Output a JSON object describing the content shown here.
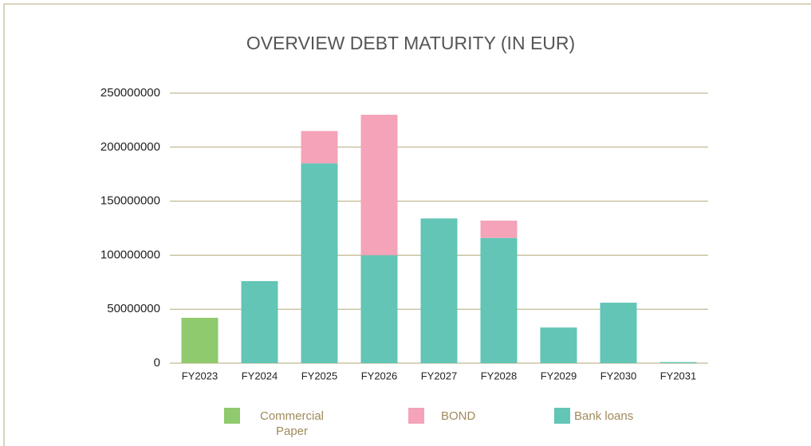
{
  "chart_data": {
    "type": "bar",
    "stacked": true,
    "title": "OVERVIEW DEBT MATURITY (IN EUR)",
    "categories": [
      "FY2023",
      "FY2024",
      "FY2025",
      "FY2026",
      "FY2027",
      "FY2028",
      "FY2029",
      "FY2030",
      "FY2031"
    ],
    "series": [
      {
        "name": "Commercial Paper",
        "color": "#8fca6e",
        "values": [
          42000000,
          0,
          0,
          0,
          0,
          0,
          0,
          0,
          0
        ]
      },
      {
        "name": "Bank loans",
        "color": "#62c5b6",
        "values": [
          0,
          76000000,
          185000000,
          100000000,
          134000000,
          116000000,
          33000000,
          56000000,
          1000000
        ]
      },
      {
        "name": "BOND",
        "color": "#f4a3b8",
        "values": [
          0,
          0,
          30000000,
          130000000,
          0,
          16000000,
          0,
          0,
          0
        ]
      }
    ],
    "legend_order": [
      0,
      2,
      1
    ],
    "ylim": [
      0,
      250000000
    ],
    "yticks": [
      0,
      50000000,
      100000000,
      150000000,
      200000000,
      250000000
    ],
    "grid": true
  }
}
